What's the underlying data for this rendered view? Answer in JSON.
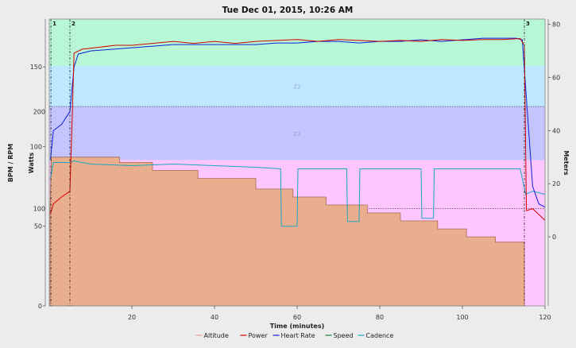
{
  "chart_data": {
    "type": "line",
    "title": "Tue Dec 01, 2015, 10:26 AM",
    "xlabel": "Time (minutes)",
    "ylabel_left_outer": "BPM / RPM",
    "ylabel_left_inner": "Watts",
    "ylabel_right": "Meters",
    "xlim": [
      0,
      120
    ],
    "x_ticks": [
      20,
      40,
      60,
      80,
      100,
      120
    ],
    "y_ticks_bpm": [
      0,
      50,
      100,
      150
    ],
    "y_ticks_watts": [
      100,
      200
    ],
    "y_ticks_meters": [
      0,
      20,
      40,
      60,
      80
    ],
    "bpm_lim": [
      0,
      180
    ],
    "watts_lim": [
      0,
      295
    ],
    "meters_lim": [
      -26,
      82
    ],
    "grid": false,
    "legend_position": "bottom",
    "zones": [
      {
        "label": "",
        "from_watts": 0,
        "to_watts": 150,
        "color": "#fdc6ff"
      },
      {
        "label": "Z3",
        "from_watts": 150,
        "to_watts": 205,
        "color": "#c4c4ff"
      },
      {
        "label": "Z2",
        "from_watts": 205,
        "to_watts": 247,
        "color": "#bde8ff"
      },
      {
        "label": "",
        "from_watts": 247,
        "to_watts": 295,
        "color": "#b8f7d6"
      }
    ],
    "reference_lines_watts": [
      100,
      205
    ],
    "interval_markers": [
      {
        "label": "1",
        "x": 0.4
      },
      {
        "label": "2",
        "x": 5.0
      },
      {
        "label": "3",
        "x": 115.0
      }
    ],
    "series": [
      {
        "name": "Altitude",
        "color": "#e8a17e",
        "x": [
          0.2,
          0.5,
          17,
          17,
          25,
          25,
          36,
          36,
          50,
          50,
          59,
          59,
          67,
          67,
          77,
          77,
          85,
          85,
          94,
          94,
          101,
          101,
          108,
          108,
          115,
          115
        ],
        "y": [
          10,
          30,
          30,
          28,
          28,
          25,
          25,
          22,
          22,
          18,
          18,
          15,
          15,
          12,
          12,
          9,
          9,
          6,
          6,
          3,
          3,
          0,
          0,
          -2,
          -2,
          -24
        ]
      },
      {
        "name": "Power",
        "unit": "watts",
        "color": "#d40000",
        "x": [
          0.3,
          1,
          3,
          5,
          5.6,
          6,
          8,
          12,
          16,
          20,
          25,
          30,
          35,
          40,
          45,
          50,
          55,
          60,
          65,
          70,
          75,
          80,
          85,
          90,
          95,
          100,
          105,
          110,
          114,
          115,
          115.5,
          117,
          119,
          120
        ],
        "y": [
          95,
          105,
          112,
          118,
          200,
          260,
          264,
          266,
          268,
          268,
          270,
          272,
          270,
          272,
          270,
          272,
          273,
          274,
          272,
          274,
          273,
          272,
          273,
          272,
          274,
          273,
          274,
          274,
          275,
          268,
          98,
          100,
          92,
          88
        ]
      },
      {
        "name": "Heart Rate",
        "unit": "bpm",
        "color": "#1020d8",
        "x": [
          0.3,
          1,
          3,
          5,
          6,
          7,
          10,
          15,
          20,
          25,
          30,
          35,
          40,
          45,
          50,
          55,
          60,
          65,
          70,
          75,
          80,
          85,
          90,
          95,
          100,
          105,
          110,
          113,
          114.5,
          115.5,
          117,
          118.5,
          120
        ],
        "y": [
          92,
          110,
          114,
          122,
          150,
          158,
          160,
          161,
          162,
          163,
          164,
          164,
          164,
          164,
          164,
          165,
          165,
          166,
          166,
          165,
          166,
          166,
          167,
          166,
          167,
          168,
          168,
          168,
          167,
          130,
          75,
          64,
          62
        ]
      },
      {
        "name": "Speed",
        "color": "#1a8a2a",
        "x": [],
        "y": []
      },
      {
        "name": "Cadence",
        "unit": "rpm",
        "color": "#1aa8c0",
        "x": [
          0.3,
          1,
          5,
          6,
          10,
          20,
          30,
          40,
          50,
          56,
          56.2,
          60,
          60.2,
          72,
          72.2,
          75,
          75.2,
          90,
          90.2,
          93,
          93.2,
          100,
          110,
          114,
          115.3,
          117,
          118.5,
          120
        ],
        "y": [
          80,
          90,
          90,
          91,
          89,
          88,
          89,
          88,
          87,
          86,
          50,
          50,
          86,
          86,
          53,
          53,
          86,
          86,
          55,
          55,
          86,
          86,
          86,
          86,
          70,
          72,
          71,
          70
        ]
      }
    ]
  }
}
